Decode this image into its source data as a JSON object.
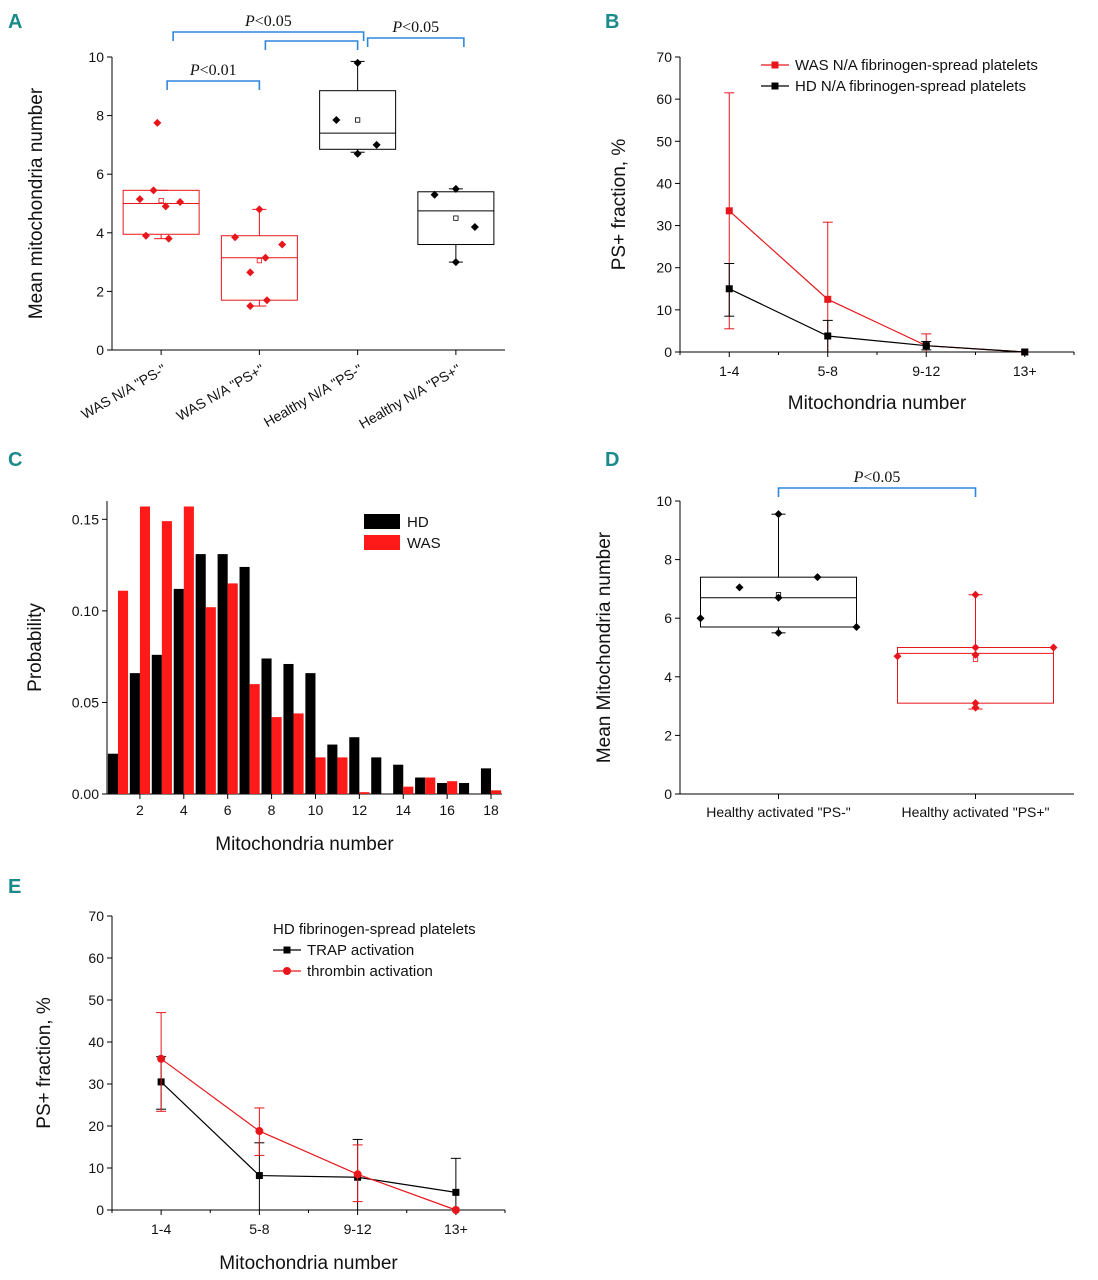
{
  "panel_letters": {
    "A": "A",
    "B": "B",
    "C": "C",
    "D": "D",
    "E": "E"
  },
  "chart_data": [
    {
      "id": "A",
      "type": "box",
      "xlabel": "",
      "ylabel": "Mean mitochondria number",
      "ylim": [
        0,
        10
      ],
      "yticks": [
        "0",
        "2",
        "4",
        "6",
        "8",
        "10"
      ],
      "categories": [
        "WAS N/A \"PS-\"",
        "WAS N/A \"PS+\"",
        "Healthy N/A \"PS-\"",
        "Healthy N/A \"PS+\""
      ],
      "colors": [
        "#e8161b",
        "#e8161b",
        "#000000",
        "#000000"
      ],
      "boxes": [
        {
          "min": 3.8,
          "q1": 3.95,
          "median": 5.0,
          "q3": 5.45,
          "max": 5.45,
          "mean": 5.1,
          "points": [
            [
              -0.28,
              5.15
            ],
            [
              -0.1,
              5.45
            ],
            [
              0.25,
              5.05
            ],
            [
              0.06,
              4.9
            ],
            [
              -0.2,
              3.9
            ],
            [
              0.1,
              3.8
            ],
            [
              -0.05,
              7.75
            ]
          ]
        },
        {
          "min": 1.5,
          "q1": 1.7,
          "median": 3.15,
          "q3": 3.9,
          "max": 4.8,
          "mean": 3.05,
          "points": [
            [
              -0.32,
              3.85
            ],
            [
              0.0,
              4.8
            ],
            [
              0.3,
              3.6
            ],
            [
              0.08,
              3.15
            ],
            [
              -0.12,
              2.65
            ],
            [
              0.1,
              1.7
            ],
            [
              -0.12,
              1.5
            ]
          ]
        },
        {
          "min": 6.75,
          "q1": 6.85,
          "median": 7.4,
          "q3": 8.85,
          "max": 9.85,
          "mean": 7.85,
          "points": [
            [
              -0.28,
              7.85
            ],
            [
              0.0,
              9.8
            ],
            [
              0.0,
              6.7
            ],
            [
              0.25,
              7.0
            ]
          ]
        },
        {
          "min": 3.0,
          "q1": 3.6,
          "median": 4.75,
          "q3": 5.4,
          "max": 5.5,
          "mean": 4.5,
          "points": [
            [
              -0.28,
              5.3
            ],
            [
              0.0,
              5.5
            ],
            [
              0.25,
              4.2
            ],
            [
              0.0,
              3.0
            ]
          ]
        }
      ],
      "comparisons": [
        {
          "from": 0,
          "to": 1,
          "label": "P<0.01",
          "p": "P",
          "rest": "<0.01"
        },
        {
          "from": 0,
          "to": 2,
          "label": "P<0.05",
          "p": "P",
          "rest": "<0.05"
        },
        {
          "from": 1,
          "to": 2,
          "label": "",
          "p": "",
          "rest": ""
        },
        {
          "from": 2,
          "to": 3,
          "label": "P<0.05",
          "p": "P",
          "rest": "<0.05"
        }
      ]
    },
    {
      "id": "B",
      "type": "line",
      "xlabel": "Mitochondria number",
      "ylabel": "PS+ fraction, %",
      "ylim": [
        0,
        70
      ],
      "yticks": [
        "0",
        "10",
        "20",
        "30",
        "40",
        "50",
        "60",
        "70"
      ],
      "categories": [
        "1-4",
        "5-8",
        "9-12",
        "13+"
      ],
      "series": [
        {
          "name": "WAS N/A fibrinogen-spread platelets",
          "color": "#e8161b",
          "marker": "square",
          "values": [
            33.5,
            12.5,
            1.5,
            0
          ],
          "err_up": [
            61.5,
            30.8,
            4.3,
            0
          ],
          "err_down": [
            5.5,
            0,
            0,
            0
          ]
        },
        {
          "name": "HD N/A fibrinogen-spread platelets",
          "color": "#000000",
          "marker": "square",
          "values": [
            15.0,
            3.8,
            1.5,
            0
          ],
          "err_up": [
            21.0,
            7.5,
            2.5,
            0
          ],
          "err_down": [
            8.5,
            0,
            0.5,
            0
          ]
        }
      ]
    },
    {
      "id": "C",
      "type": "bar",
      "xlabel": "Mitochondria number",
      "ylabel": "Probability",
      "ylim": [
        0,
        0.16
      ],
      "yticks": [
        "0.00",
        "0.05",
        "0.10",
        "0.15"
      ],
      "xticks": [
        "2",
        "4",
        "6",
        "8",
        "10",
        "12",
        "14",
        "16",
        "18"
      ],
      "categories": [
        1,
        2,
        3,
        4,
        5,
        6,
        7,
        8,
        9,
        10,
        11,
        12,
        13,
        14,
        15,
        16,
        17,
        18
      ],
      "series": [
        {
          "name": "HD",
          "color": "#000000",
          "values": [
            0.022,
            0.066,
            0.076,
            0.112,
            0.131,
            0.131,
            0.124,
            0.074,
            0.071,
            0.066,
            0.027,
            0.031,
            0.02,
            0.016,
            0.009,
            0.006,
            0.006,
            0.014
          ]
        },
        {
          "name": "WAS",
          "color": "#ff1a1a",
          "values": [
            0.111,
            0.157,
            0.149,
            0.157,
            0.102,
            0.115,
            0.06,
            0.042,
            0.044,
            0.02,
            0.02,
            0.001,
            0,
            0.004,
            0.009,
            0.007,
            0,
            0.002
          ]
        }
      ]
    },
    {
      "id": "D",
      "type": "box",
      "xlabel": "",
      "ylabel": "Mean Mitochondria number",
      "ylim": [
        0,
        10
      ],
      "yticks": [
        "0",
        "2",
        "4",
        "6",
        "8",
        "10"
      ],
      "categories": [
        "Healthy activated \"PS-\"",
        "Healthy activated \"PS+\""
      ],
      "colors": [
        "#000000",
        "#e8161b"
      ],
      "boxes": [
        {
          "min": 5.5,
          "q1": 5.7,
          "median": 6.7,
          "q3": 7.4,
          "max": 9.55,
          "mean": 6.8,
          "points": [
            [
              0.0,
              9.55
            ],
            [
              -0.25,
              7.05
            ],
            [
              0.25,
              7.4
            ],
            [
              -0.5,
              6.0
            ],
            [
              0.0,
              6.7
            ],
            [
              0.5,
              5.7
            ],
            [
              0.0,
              5.5
            ]
          ]
        },
        {
          "min": 2.9,
          "q1": 3.1,
          "median": 4.8,
          "q3": 5.0,
          "max": 6.8,
          "mean": 4.6,
          "points": [
            [
              0.0,
              6.8
            ],
            [
              0.0,
              5.0
            ],
            [
              0.5,
              5.0
            ],
            [
              -0.5,
              4.7
            ],
            [
              0.0,
              4.75
            ],
            [
              0.0,
              3.1
            ],
            [
              0.0,
              2.95
            ]
          ]
        }
      ],
      "comparisons": [
        {
          "from": 0,
          "to": 1,
          "label": "P<0.05",
          "p": "P",
          "rest": "<0.05"
        }
      ]
    },
    {
      "id": "E",
      "type": "line",
      "xlabel": "Mitochondria number",
      "ylabel": "PS+ fraction, %",
      "ylim": [
        0,
        70
      ],
      "yticks": [
        "0",
        "10",
        "20",
        "30",
        "40",
        "50",
        "60",
        "70"
      ],
      "categories": [
        "1-4",
        "5-8",
        "9-12",
        "13+"
      ],
      "legend_title": "HD fibrinogen-spread platelets",
      "series": [
        {
          "name": "TRAP activation",
          "color": "#000000",
          "marker": "square",
          "values": [
            30.5,
            8.2,
            7.8,
            4.2
          ],
          "err_up": [
            36.5,
            16.0,
            16.8,
            12.3
          ],
          "err_down": [
            24.0,
            0,
            0,
            0
          ]
        },
        {
          "name": "thrombin activation",
          "color": "#e8161b",
          "marker": "circle",
          "values": [
            36.0,
            18.8,
            8.5,
            0
          ],
          "err_up": [
            47.0,
            24.3,
            15.5,
            0
          ],
          "err_down": [
            23.5,
            13.0,
            2.0,
            0
          ]
        }
      ]
    }
  ]
}
